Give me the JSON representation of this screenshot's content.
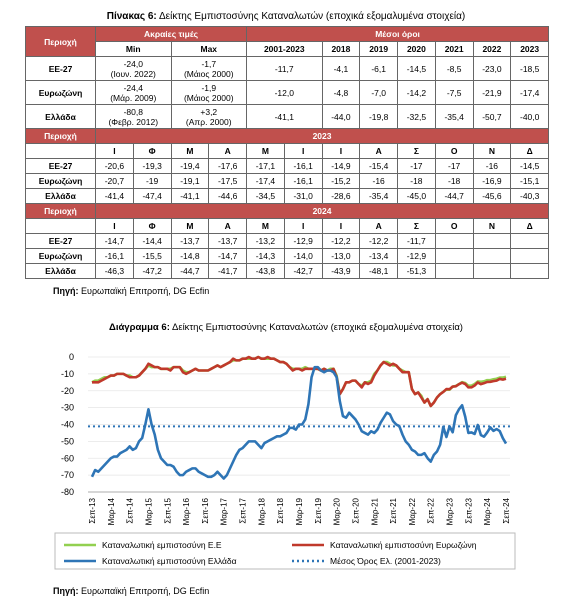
{
  "table": {
    "title": {
      "label": "Πίνακας 6:",
      "text": "Δείκτης Εμπιστοσύνης Καταναλωτών (εποχικά εξομαλυμένα στοιχεία)"
    },
    "region_header": "Περιοχή",
    "extremes_header": "Ακραίες τιμές",
    "averages_header": "Μέσοι όροι",
    "min_header": "Min",
    "max_header": "Max",
    "average_columns": [
      "2001-2023",
      "2018",
      "2019",
      "2020",
      "2021",
      "2022",
      "2023"
    ],
    "top_rows": [
      {
        "region": "ΕΕ-27",
        "min": "-24,0",
        "min_date": "(Ιουν. 2022)",
        "max": "-1,7",
        "max_date": "(Μάιος 2000)",
        "averages": [
          "-11,7",
          "-4,1",
          "-6,1",
          "-14,5",
          "-8,5",
          "-23,0",
          "-18,5"
        ]
      },
      {
        "region": "Ευρωζώνη",
        "min": "-24,4",
        "min_date": "(Μάρ. 2009)",
        "max": "-1,9",
        "max_date": "(Μάιος 2000)",
        "averages": [
          "-12,0",
          "-4,8",
          "-7,0",
          "-14,2",
          "-7,5",
          "-21,9",
          "-17,4"
        ]
      },
      {
        "region": "Ελλάδα",
        "min": "-80,8",
        "min_date": "(Φεβρ. 2012)",
        "max": "+3,2",
        "max_date": "(Απρ. 2000)",
        "averages": [
          "-41,1",
          "-44,0",
          "-19,8",
          "-32,5",
          "-35,4",
          "-50,7",
          "-40,0"
        ]
      }
    ],
    "months": [
      "Ι",
      "Φ",
      "Μ",
      "Α",
      "Μ",
      "Ι",
      "Ι",
      "Α",
      "Σ",
      "Ο",
      "Ν",
      "Δ"
    ],
    "sections": [
      {
        "year": "2023",
        "rows": [
          {
            "region": "ΕΕ-27",
            "values": [
              "-20,6",
              "-19,3",
              "-19,4",
              "-17,6",
              "-17,1",
              "-16,1",
              "-14,9",
              "-15,4",
              "-17",
              "-17",
              "-16",
              "-14,5"
            ]
          },
          {
            "region": "Ευρωζώνη",
            "values": [
              "-20,7",
              "-19",
              "-19,1",
              "-17,5",
              "-17,4",
              "-16,1",
              "-15,2",
              "-16",
              "-18",
              "-18",
              "-16,9",
              "-15,1"
            ]
          },
          {
            "region": "Ελλάδα",
            "values": [
              "-41,4",
              "-47,4",
              "-41,1",
              "-44,6",
              "-34,5",
              "-31,0",
              "-28,6",
              "-35,4",
              "-45,0",
              "-44,7",
              "-45,6",
              "-40,3"
            ]
          }
        ]
      },
      {
        "year": "2024",
        "rows": [
          {
            "region": "ΕΕ-27",
            "values": [
              "-14,7",
              "-14,4",
              "-13,7",
              "-13,7",
              "-13,2",
              "-12,9",
              "-12,2",
              "-12,2",
              "-11,7"
            ]
          },
          {
            "region": "Ευρωζώνη",
            "values": [
              "-16,1",
              "-15,5",
              "-14,8",
              "-14,7",
              "-14,3",
              "-14,0",
              "-13,0",
              "-13,4",
              "-12,9"
            ]
          },
          {
            "region": "Ελλάδα",
            "values": [
              "-46,3",
              "-47,2",
              "-44,7",
              "-41,7",
              "-43,8",
              "-42,7",
              "-43,9",
              "-48,1",
              "-51,3"
            ]
          }
        ]
      }
    ],
    "source": {
      "label": "Πηγή:",
      "text": "Ευρωπαϊκή Επιτροπή, DG Ecfin"
    }
  },
  "chart_data": {
    "type": "line",
    "title": {
      "label": "Διάγραμμα 6:",
      "text": "Δείκτης Εμπιστοσύνης Καταναλωτών (εποχικά εξομαλυμένα στοιχεία)"
    },
    "categories": [
      "Σεπ-13",
      null,
      null,
      null,
      null,
      null,
      "Μαρ-14",
      null,
      null,
      null,
      null,
      null,
      "Σεπ-14",
      null,
      null,
      null,
      null,
      null,
      "Μαρ-15",
      null,
      null,
      null,
      null,
      null,
      "Σεπ-15",
      null,
      null,
      null,
      null,
      null,
      "Μαρ-16",
      null,
      null,
      null,
      null,
      null,
      "Σεπ-16",
      null,
      null,
      null,
      null,
      null,
      "Μαρ-17",
      null,
      null,
      null,
      null,
      null,
      "Σεπ-17",
      null,
      null,
      null,
      null,
      null,
      "Μαρ-18",
      null,
      null,
      null,
      null,
      null,
      "Σεπ-18",
      null,
      null,
      null,
      null,
      null,
      "Μαρ-19",
      null,
      null,
      null,
      null,
      null,
      "Σεπ-19",
      null,
      null,
      null,
      null,
      null,
      "Μαρ-20",
      null,
      null,
      null,
      null,
      null,
      "Σεπ-20",
      null,
      null,
      null,
      null,
      null,
      "Μαρ-21",
      null,
      null,
      null,
      null,
      null,
      "Σεπ-21",
      null,
      null,
      null,
      null,
      null,
      "Μαρ-22",
      null,
      null,
      null,
      null,
      null,
      "Σεπ-22",
      null,
      null,
      null,
      null,
      null,
      "Μαρ-23",
      null,
      null,
      null,
      null,
      null,
      "Σεπ-23",
      null,
      null,
      null,
      null,
      null,
      "Μαρ-24",
      null,
      null,
      null,
      null,
      null,
      "Σεπ-24"
    ],
    "series": [
      {
        "name": "Καταναλωτική εμπιστοσύνη Ε.Ε",
        "color": "#92d050",
        "values": [
          -15,
          -14,
          -14,
          -13,
          -12,
          -12,
          -11,
          -11,
          -10,
          -10,
          -10,
          -11,
          -11,
          -12,
          -12,
          -11,
          -9,
          -7,
          -5,
          -6,
          -6,
          -6,
          -7,
          -7,
          -7,
          -7,
          -6,
          -6,
          -6,
          -8,
          -9,
          -9,
          -8,
          -7,
          -8,
          -8,
          -8,
          -8,
          -7,
          -6,
          -5,
          -6,
          -5,
          -4,
          -3,
          -2,
          -2,
          -2,
          -1,
          -1,
          -1,
          -1,
          -1,
          0,
          -1,
          -1,
          -1,
          -1,
          -1,
          -2,
          -3,
          -3,
          -4,
          -6,
          -7,
          -7,
          -7,
          -7,
          -6,
          -7,
          -7,
          -7,
          -7,
          -8,
          -7,
          -8,
          -7,
          -7,
          -11,
          -22,
          -19,
          -15,
          -15,
          -14,
          -14,
          -16,
          -17,
          -15,
          -15,
          -14,
          -10,
          -8,
          -5,
          -3,
          -3,
          -4,
          -5,
          -5,
          -7,
          -8,
          -9,
          -9,
          -19,
          -22,
          -21,
          -23,
          -27,
          -25,
          -29,
          -27,
          -24,
          -22,
          -20.6,
          -19.3,
          -19.4,
          -17.6,
          -17.1,
          -16.1,
          -14.9,
          -15.4,
          -17,
          -17,
          -16,
          -14.5,
          -14.7,
          -14.4,
          -13.7,
          -13.7,
          -13.2,
          -12.9,
          -12.2,
          -12.2,
          -11.7
        ]
      },
      {
        "name": "Καταναλωτική εμπιστοσύνη Ευρωζώνη",
        "color": "#c0392b",
        "values": [
          -15,
          -15,
          -15,
          -14,
          -13,
          -12,
          -11,
          -11,
          -10,
          -10,
          -10,
          -11,
          -12,
          -12,
          -12,
          -11,
          -9,
          -7,
          -4,
          -5,
          -6,
          -6,
          -7,
          -7,
          -7,
          -8,
          -6,
          -6,
          -6,
          -9,
          -10,
          -9,
          -8,
          -7,
          -8,
          -8,
          -8,
          -8,
          -7,
          -6,
          -5,
          -6,
          -5,
          -4,
          -3,
          -1,
          -2,
          -2,
          -1,
          -1,
          0,
          -1,
          -1,
          0,
          -1,
          -1,
          0,
          -1,
          -1,
          -2,
          -3,
          -3,
          -4,
          -6,
          -8,
          -7,
          -7,
          -8,
          -7,
          -7,
          -7,
          -7,
          -7,
          -8,
          -7,
          -8,
          -8,
          -7,
          -12,
          -22,
          -19,
          -15,
          -15,
          -14,
          -14,
          -16,
          -18,
          -15,
          -16,
          -15,
          -11,
          -8,
          -5,
          -3,
          -4,
          -5,
          -4,
          -5,
          -7,
          -9,
          -9,
          -9,
          -19,
          -22,
          -21,
          -24,
          -27,
          -25,
          -29,
          -27,
          -24,
          -22,
          -20.7,
          -19,
          -19.1,
          -17.5,
          -17.4,
          -16.1,
          -15.2,
          -16,
          -18,
          -18,
          -16.9,
          -15.1,
          -16.1,
          -15.5,
          -14.8,
          -14.7,
          -14.3,
          -14.0,
          -13.0,
          -13.4,
          -12.9
        ]
      },
      {
        "name": "Καταναλωτική εμπιστοσύνη Ελλάδα",
        "color": "#2e75b6",
        "values": [
          -71,
          -67,
          -68,
          -66,
          -64,
          -62,
          -60,
          -59,
          -59,
          -57,
          -56,
          -55,
          -53,
          -55,
          -54,
          -50,
          -48,
          -40,
          -31,
          -40,
          -46,
          -55,
          -60,
          -62,
          -64,
          -64,
          -65,
          -68,
          -70,
          -70,
          -68,
          -67,
          -66,
          -66,
          -68,
          -69,
          -70,
          -71,
          -71,
          -70,
          -68,
          -70,
          -72,
          -70,
          -66,
          -62,
          -58,
          -55,
          -54,
          -52,
          -50,
          -50,
          -50,
          -52,
          -54,
          -51,
          -50,
          -49,
          -48,
          -47,
          -47,
          -46,
          -45,
          -42,
          -42,
          -43,
          -40,
          -40,
          -37,
          -28,
          -12,
          -6,
          -6,
          -8,
          -9,
          -8,
          -8,
          -9,
          -12,
          -26,
          -35,
          -36,
          -33,
          -35,
          -37,
          -40,
          -44,
          -45,
          -46,
          -44,
          -45,
          -43,
          -39,
          -36,
          -33,
          -34,
          -38,
          -40,
          -41,
          -46,
          -50,
          -52,
          -55,
          -56,
          -58,
          -58,
          -57,
          -60,
          -62,
          -58,
          -56,
          -52,
          -41.4,
          -47.4,
          -41.1,
          -44.6,
          -34.5,
          -31.0,
          -28.6,
          -35.4,
          -45.0,
          -44.7,
          -45.6,
          -40.3,
          -46.3,
          -47.2,
          -44.7,
          -41.7,
          -43.8,
          -42.7,
          -43.9,
          -48.1,
          -51.3
        ]
      },
      {
        "name": "Μέσος Όρος Ελ. (2001-2023)",
        "color": "#2e75b6",
        "style": "dotted",
        "value": -41.1
      }
    ],
    "ylim": [
      -80,
      0
    ],
    "yticks": [
      0,
      -10,
      -20,
      -30,
      -40,
      -50,
      -60,
      -70,
      -80
    ],
    "grid": true,
    "source": {
      "label": "Πηγή:",
      "text": "Ευρωπαϊκή Επιτροπή, DG Ecfin"
    }
  }
}
